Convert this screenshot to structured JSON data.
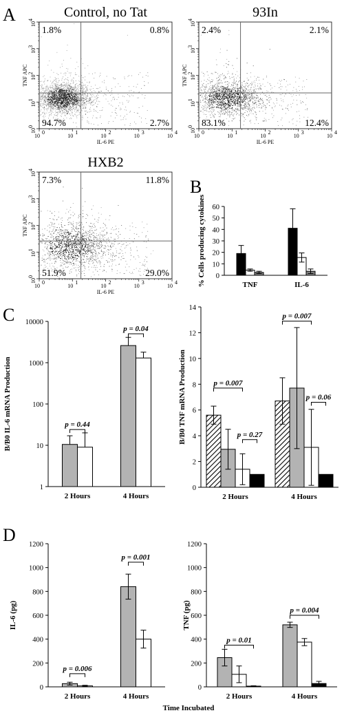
{
  "panel_letters": [
    "A",
    "B",
    "C",
    "D"
  ],
  "chart_data": [
    {
      "type": "scatter",
      "panel": "A",
      "title": "Control, no Tat",
      "xlabel": "IL-6 PE",
      "ylabel": "TNF APC",
      "x_ticks": [
        "10",
        "10",
        "10",
        "10",
        "10"
      ],
      "x_exps": [
        "0",
        "1",
        "2",
        "3",
        "4"
      ],
      "y_ticks": [
        "10",
        "10",
        "10",
        "10",
        "10"
      ],
      "y_exps": [
        "0",
        "1",
        "2",
        "3",
        "4"
      ],
      "scale": "log",
      "xlim": [
        1,
        10000
      ],
      "ylim": [
        1,
        10000
      ],
      "quadrants": {
        "upper_left": "1.8%",
        "upper_right": "0.8%",
        "lower_left": "94.7%",
        "lower_right": "2.7%"
      },
      "gate": {
        "x": 18,
        "y": 22
      },
      "cloud": {
        "cx": 5,
        "cy": 14,
        "sx": 0.18,
        "sy": 0.13,
        "tail": 0.25
      }
    },
    {
      "type": "scatter",
      "panel": "A",
      "title": "93In",
      "xlabel": "IL-6 PE",
      "ylabel": "TNF APC",
      "x_ticks": [
        "10",
        "10",
        "10",
        "10",
        "10"
      ],
      "x_exps": [
        "0",
        "1",
        "2",
        "3",
        "4"
      ],
      "y_ticks": [
        "10",
        "10",
        "10",
        "10",
        "10"
      ],
      "y_exps": [
        "0",
        "1",
        "2",
        "3",
        "4"
      ],
      "scale": "log",
      "xlim": [
        1,
        10000
      ],
      "ylim": [
        1,
        10000
      ],
      "quadrants": {
        "upper_left": "2.4%",
        "upper_right": "2.1%",
        "lower_left": "83.1%",
        "lower_right": "12.4%"
      },
      "gate": {
        "x": 18,
        "y": 22
      },
      "cloud": {
        "cx": 7,
        "cy": 14,
        "sx": 0.22,
        "sy": 0.15,
        "tail": 0.5
      }
    },
    {
      "type": "scatter",
      "panel": "A",
      "title": "HXB2",
      "xlabel": "IL-6 PE",
      "ylabel": "TNF APC",
      "x_ticks": [
        "10",
        "10",
        "10",
        "10",
        "10"
      ],
      "x_exps": [
        "0",
        "1",
        "2",
        "3",
        "4"
      ],
      "y_ticks": [
        "10",
        "10",
        "10",
        "10",
        "10"
      ],
      "y_exps": [
        "0",
        "1",
        "2",
        "3",
        "4"
      ],
      "scale": "log",
      "xlim": [
        1,
        10000
      ],
      "ylim": [
        1,
        10000
      ],
      "quadrants": {
        "upper_left": "7.3%",
        "upper_right": "11.8%",
        "lower_left": "51.9%",
        "lower_right": "29.0%"
      },
      "gate": {
        "x": 18,
        "y": 26
      },
      "cloud": {
        "cx": 9,
        "cy": 17,
        "sx": 0.26,
        "sy": 0.2,
        "tail": 0.8
      }
    },
    {
      "type": "bar",
      "panel": "B",
      "ylabel": "% Cells producing cytokines",
      "categories": [
        "TNF",
        "IL-6"
      ],
      "ylim": [
        0,
        60
      ],
      "yticks": [
        0,
        10,
        20,
        30,
        40,
        50,
        60
      ],
      "series": [
        {
          "fill": "#000000",
          "values": [
            19,
            41
          ],
          "err": [
            7,
            17
          ]
        },
        {
          "fill": "#ffffff",
          "values": [
            4.5,
            15.5
          ],
          "err": [
            1,
            4
          ]
        },
        {
          "fill": "#7f7f7f",
          "values": [
            2.5,
            3.5
          ],
          "err": [
            1,
            2
          ]
        }
      ]
    },
    {
      "type": "bar",
      "panel": "C",
      "ylabel": "B/B0 IL-6 mRNA Production",
      "scale": "log",
      "categories": [
        "2 Hours",
        "4 Hours"
      ],
      "ylim": [
        1,
        10000
      ],
      "yticks": [
        1,
        10,
        100,
        1000,
        10000
      ],
      "ytick_labels": [
        "1",
        "10",
        "100",
        "1000",
        "10000"
      ],
      "series": [
        {
          "fill": "#b3b3b3",
          "values": [
            10.5,
            2600
          ],
          "err_hi": [
            17,
            4100
          ]
        },
        {
          "fill": "#ffffff",
          "values": [
            9,
            1300
          ],
          "err_hi": [
            20,
            1800
          ]
        }
      ],
      "p_values": [
        {
          "text": "p = 0.44",
          "group": 0,
          "from": 0,
          "to": 1,
          "y": 24
        },
        {
          "text": "p = 0.04",
          "group": 1,
          "from": 0,
          "to": 1,
          "y": 5000
        }
      ]
    },
    {
      "type": "bar",
      "panel": "C",
      "ylabel": "B/B0 TNF mRNA Production",
      "categories": [
        "2 Hours",
        "4 Hours"
      ],
      "ylim": [
        0,
        14
      ],
      "yticks": [
        0,
        2,
        4,
        6,
        8,
        10,
        12,
        14
      ],
      "series": [
        {
          "fill": "hatch",
          "values": [
            5.6,
            6.7
          ],
          "err": [
            0.7,
            1.8
          ]
        },
        {
          "fill": "#b3b3b3",
          "values": [
            2.95,
            7.7
          ],
          "err": [
            1.55,
            4.7
          ]
        },
        {
          "fill": "#ffffff",
          "values": [
            1.4,
            3.1
          ],
          "err": [
            1.2,
            2.95
          ]
        },
        {
          "fill": "#000000",
          "values": [
            1,
            1
          ],
          "err": [
            0,
            0
          ]
        }
      ],
      "p_values": [
        {
          "text": "p = 0.007",
          "group": 0,
          "from": 0,
          "to": 2,
          "y": 7.7
        },
        {
          "text": "p = 0.27",
          "group": 0,
          "from": 2,
          "to": 3,
          "y": 3.7
        },
        {
          "text": "p = 0.007",
          "group": 1,
          "from": 0,
          "to": 2,
          "y": 12.9
        },
        {
          "text": "p = 0.06",
          "group": 1,
          "from": 2,
          "to": 3,
          "y": 6.6
        }
      ]
    },
    {
      "type": "bar",
      "panel": "D",
      "ylabel": "IL-6 (pg)",
      "categories": [
        "2 Hours",
        "4 Hours"
      ],
      "ylim": [
        0,
        1200
      ],
      "yticks": [
        0,
        200,
        400,
        600,
        800,
        1000,
        1200
      ],
      "series": [
        {
          "fill": "#b3b3b3",
          "values": [
            27,
            840
          ],
          "err": [
            12,
            105
          ]
        },
        {
          "fill": "#ffffff",
          "values": [
            8,
            400
          ],
          "err": [
            5,
            75
          ]
        }
      ],
      "p_values": [
        {
          "text": "p = 0.006",
          "group": 0,
          "from": 0,
          "to": 1,
          "y": 110
        },
        {
          "text": "p = 0.001",
          "group": 1,
          "from": 0,
          "to": 1,
          "y": 1045
        }
      ]
    },
    {
      "type": "bar",
      "panel": "D",
      "ylabel": "TNF (pg)",
      "categories": [
        "2 Hours",
        "4 Hours"
      ],
      "ylim": [
        0,
        1200
      ],
      "yticks": [
        0,
        200,
        400,
        600,
        800,
        1000,
        1200
      ],
      "series": [
        {
          "fill": "#b3b3b3",
          "values": [
            245,
            520
          ],
          "err": [
            70,
            22
          ]
        },
        {
          "fill": "#ffffff",
          "values": [
            105,
            375
          ],
          "err": [
            70,
            30
          ]
        },
        {
          "fill": "#000000",
          "values": [
            6,
            28
          ],
          "err": [
            3,
            18
          ]
        }
      ],
      "p_values": [
        {
          "text": "p = 0.01",
          "group": 0,
          "from": 0,
          "to": 2,
          "y": 350
        },
        {
          "text": "p = 0.004",
          "group": 1,
          "from": 0,
          "to": 2,
          "y": 600
        }
      ]
    }
  ],
  "shared_xlabel": "Time Incubated"
}
